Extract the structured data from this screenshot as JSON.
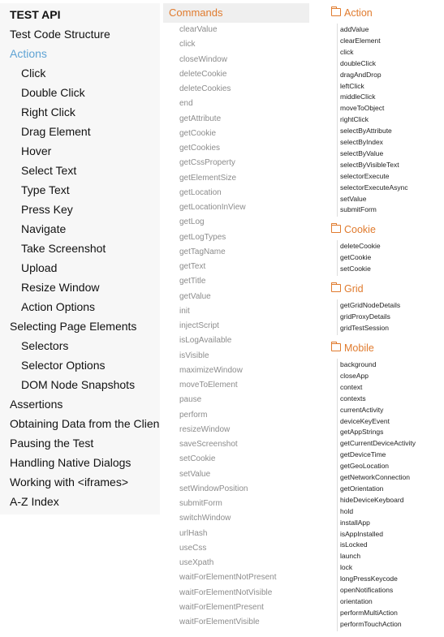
{
  "left_nav": {
    "items": [
      {
        "label": "TEST API",
        "level": 0,
        "kind": "head"
      },
      {
        "label": "Test Code Structure",
        "level": 0
      },
      {
        "label": "Actions",
        "level": 0,
        "active": true
      },
      {
        "label": "Click",
        "level": 1
      },
      {
        "label": "Double Click",
        "level": 1
      },
      {
        "label": "Right Click",
        "level": 1
      },
      {
        "label": "Drag Element",
        "level": 1
      },
      {
        "label": "Hover",
        "level": 1
      },
      {
        "label": "Select Text",
        "level": 1
      },
      {
        "label": "Type Text",
        "level": 1
      },
      {
        "label": "Press Key",
        "level": 1
      },
      {
        "label": "Navigate",
        "level": 1
      },
      {
        "label": "Take Screenshot",
        "level": 1
      },
      {
        "label": "Upload",
        "level": 1
      },
      {
        "label": "Resize Window",
        "level": 1
      },
      {
        "label": "Action Options",
        "level": 1
      },
      {
        "label": "Selecting Page Elements",
        "level": 0
      },
      {
        "label": "Selectors",
        "level": 1
      },
      {
        "label": "Selector Options",
        "level": 1
      },
      {
        "label": "DOM Node Snapshots",
        "level": 1
      },
      {
        "label": "Assertions",
        "level": 0
      },
      {
        "label": "Obtaining Data from the Clien",
        "level": 0
      },
      {
        "label": "Pausing the Test",
        "level": 0
      },
      {
        "label": "Handling Native Dialogs",
        "level": 0
      },
      {
        "label": "Working with <iframes>",
        "level": 0
      },
      {
        "label": "A-Z Index",
        "level": 0
      }
    ]
  },
  "commands": {
    "title": "Commands",
    "items": [
      "clearValue",
      "click",
      "closeWindow",
      "deleteCookie",
      "deleteCookies",
      "end",
      "getAttribute",
      "getCookie",
      "getCookies",
      "getCssProperty",
      "getElementSize",
      "getLocation",
      "getLocationInView",
      "getLog",
      "getLogTypes",
      "getTagName",
      "getText",
      "getTitle",
      "getValue",
      "init",
      "injectScript",
      "isLogAvailable",
      "isVisible",
      "maximizeWindow",
      "moveToElement",
      "pause",
      "perform",
      "resizeWindow",
      "saveScreenshot",
      "setCookie",
      "setValue",
      "setWindowPosition",
      "submitForm",
      "switchWindow",
      "urlHash",
      "useCss",
      "useXpath",
      "waitForElementNotPresent",
      "waitForElementNotVisible",
      "waitForElementPresent",
      "waitForElementVisible"
    ]
  },
  "categories": [
    {
      "title": "Action",
      "icon": "folder-icon",
      "items": [
        "addValue",
        "clearElement",
        "click",
        "doubleClick",
        "dragAndDrop",
        "leftClick",
        "middleClick",
        "moveToObject",
        "rightClick",
        "selectByAttribute",
        "selectByIndex",
        "selectByValue",
        "selectByVisibleText",
        "selectorExecute",
        "selectorExecuteAsync",
        "setValue",
        "submitForm"
      ]
    },
    {
      "title": "Cookie",
      "icon": "folder-icon",
      "items": [
        "deleteCookie",
        "getCookie",
        "setCookie"
      ]
    },
    {
      "title": "Grid",
      "icon": "folder-icon",
      "items": [
        "getGridNodeDetails",
        "gridProxyDetails",
        "gridTestSession"
      ]
    },
    {
      "title": "Mobile",
      "icon": "folder-icon",
      "items": [
        "background",
        "closeApp",
        "context",
        "contexts",
        "currentActivity",
        "deviceKeyEvent",
        "getAppStrings",
        "getCurrentDeviceActivity",
        "getDeviceTime",
        "getGeoLocation",
        "getNetworkConnection",
        "getOrientation",
        "hideDeviceKeyboard",
        "hold",
        "installApp",
        "isAppInstalled",
        "isLocked",
        "launch",
        "lock",
        "longPressKeycode",
        "openNotifications",
        "orientation",
        "performMultiAction",
        "performTouchAction"
      ]
    }
  ],
  "colors": {
    "accent": "#e07b2e",
    "active_link": "#5fa3d4",
    "command_text": "#8c8c8c",
    "nav_bg": "#f7f7f7"
  }
}
